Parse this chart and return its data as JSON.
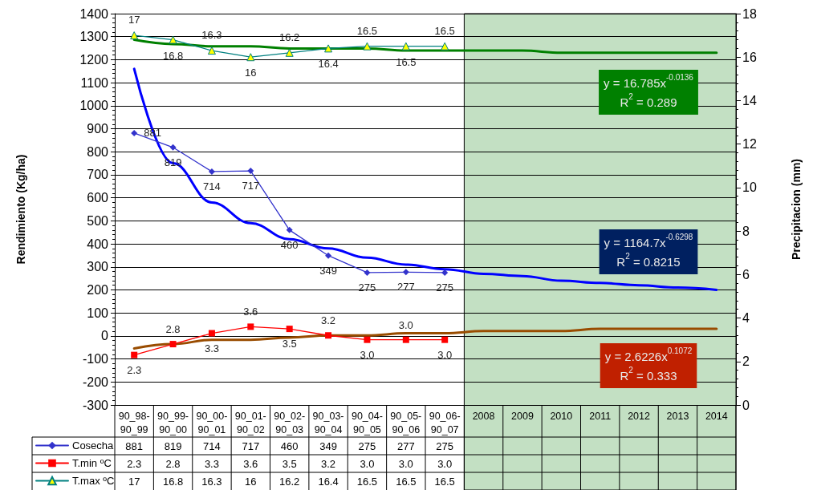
{
  "chart_data": {
    "type": "line",
    "ylabel": "Rendimiento (Kg/ha)",
    "y2label": "Precipitacion (mm)",
    "categories": [
      "90_98-90_99",
      "90_99-90_00",
      "90_00-90_01",
      "90_01-90_02",
      "90_02-90_03",
      "90_03-90_04",
      "90_04-90_05",
      "90_05-90_06",
      "90_06-90_07",
      "2008",
      "2009",
      "2010",
      "2011",
      "2012",
      "2013",
      "2014"
    ],
    "ylim": [
      -300,
      1400
    ],
    "yticks": [
      -300,
      -200,
      -100,
      0,
      100,
      200,
      300,
      400,
      500,
      600,
      700,
      800,
      900,
      1000,
      1100,
      1200,
      1300,
      1400
    ],
    "y2lim": [
      0,
      18
    ],
    "y2ticks": [
      0,
      2,
      4,
      6,
      8,
      10,
      12,
      14,
      16,
      18
    ],
    "grid": "y",
    "legend": "bottom left",
    "series": [
      {
        "name": "Cosecha",
        "color": "#3333cc",
        "marker": "diamond",
        "values": [
          881,
          819,
          714,
          717,
          460,
          349,
          275,
          277,
          275,
          null,
          null,
          null,
          null,
          null,
          null,
          null
        ],
        "value_labels": [
          "881",
          "819",
          "714",
          "717",
          "460",
          "349",
          "275",
          "277",
          "275",
          null,
          null,
          null,
          null,
          null,
          null,
          null
        ]
      },
      {
        "name": "T.min ºC",
        "color": "#ff0000",
        "marker": "square",
        "axis": "y2",
        "values": [
          2.3,
          2.8,
          3.3,
          3.6,
          3.5,
          3.2,
          3.0,
          3.0,
          3.0,
          null,
          null,
          null,
          null,
          null,
          null,
          null
        ],
        "value_labels": [
          "2.3",
          "2.8",
          "3.3",
          "3.6",
          "3.5",
          "3.2",
          "3.0",
          "3.0",
          "3.0",
          null,
          null,
          null,
          null,
          null,
          null,
          null
        ]
      },
      {
        "name": "T.max ºC",
        "color": "#008080",
        "marker": "triangle",
        "axis": "y2",
        "values": [
          17,
          16.8,
          16.3,
          16,
          16.2,
          16.4,
          16.5,
          16.5,
          16.5,
          null,
          null,
          null,
          null,
          null,
          null,
          null
        ],
        "value_labels": [
          "17",
          "16.8",
          "16.3",
          "16",
          "16.2",
          "16.4",
          "16.5",
          "16.5",
          "16.5",
          null,
          null,
          null,
          null,
          null,
          null,
          null
        ]
      },
      {
        "color": "#0000ff",
        "marker": "none",
        "values": [
          1160,
          750,
          580,
          490,
          420,
          380,
          340,
          310,
          290,
          270,
          260,
          240,
          230,
          220,
          210,
          200
        ]
      },
      {
        "color": "#008000",
        "marker": "none",
        "axis": "y2",
        "values": [
          16.8,
          16.6,
          16.5,
          16.5,
          16.4,
          16.4,
          16.4,
          16.3,
          16.3,
          16.3,
          16.3,
          16.2,
          16.2,
          16.2,
          16.2,
          16.2
        ]
      },
      {
        "color": "#994c00",
        "marker": "none",
        "axis": "y2",
        "values": [
          2.6,
          2.8,
          3.0,
          3.0,
          3.1,
          3.2,
          3.2,
          3.3,
          3.3,
          3.4,
          3.4,
          3.4,
          3.5,
          3.5,
          3.5,
          3.5
        ]
      }
    ],
    "bands": [
      {
        "axis": "x",
        "from": "2008",
        "to": "2014",
        "color": "#c3e0c3"
      }
    ],
    "annotations": [
      "y = 16.785x$^{-0.0136}$\nR$^{2}$ = 0.289",
      "y = 1164.7x$^{-0.6298}$\nR$^{2}$ = 0.8215",
      "y = 2.6226x$^{0.1072}$\nR$^{2}$ = 0.333"
    ]
  }
}
